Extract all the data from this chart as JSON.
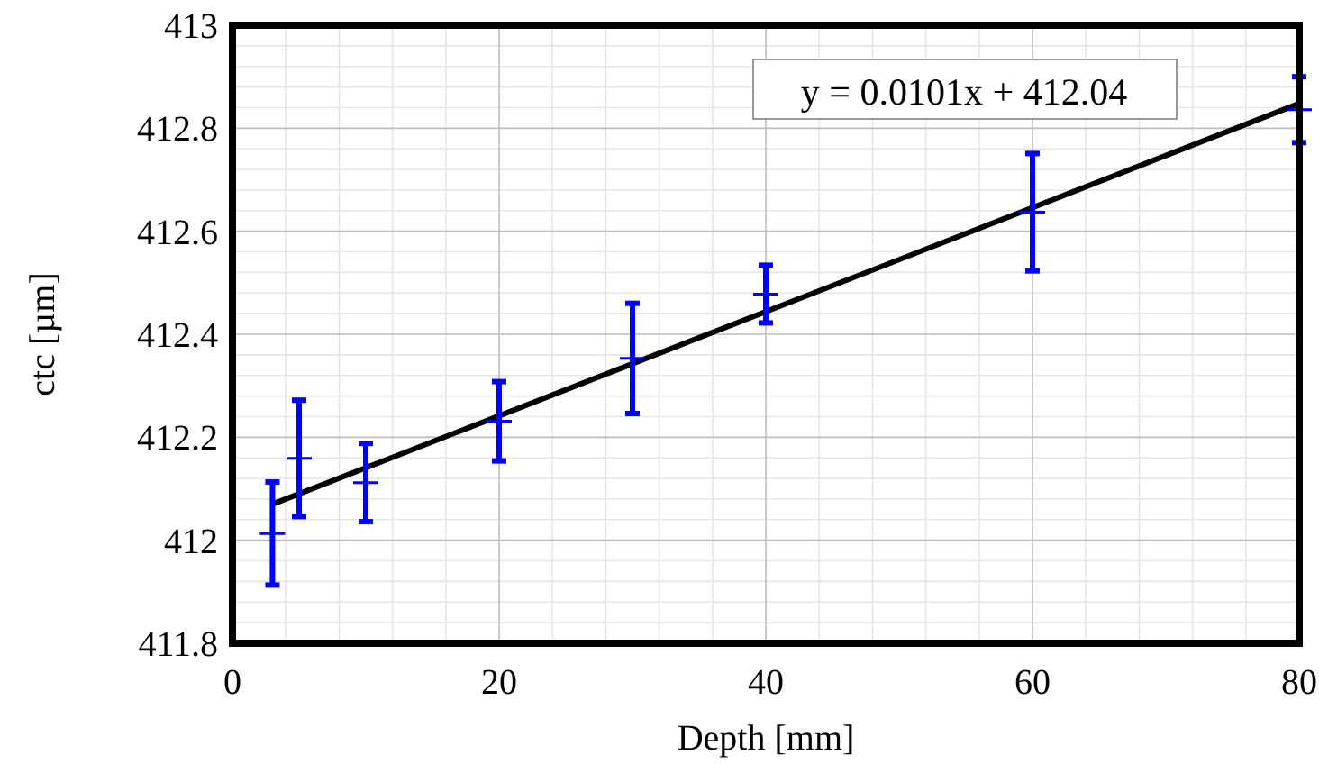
{
  "chart_data": {
    "type": "scatter",
    "xlabel": "Depth [mm]",
    "ylabel": "ctc [µm]",
    "xlim": [
      0,
      80
    ],
    "ylim": [
      411.8,
      413
    ],
    "xticks": [
      0,
      20,
      40,
      60,
      80
    ],
    "yticks": [
      411.8,
      412,
      412.2,
      412.4,
      412.6,
      412.8,
      413
    ],
    "grid": true,
    "series": [
      {
        "color": "#0000ff",
        "marker": "cross",
        "x": [
          3,
          5,
          10,
          20,
          30,
          40,
          60,
          80
        ],
        "values": [
          412.013,
          412.159,
          412.112,
          412.231,
          412.353,
          412.478,
          412.637,
          412.836
        ],
        "errors": [
          0.1,
          0.113,
          0.076,
          0.077,
          0.107,
          0.056,
          0.114,
          0.064
        ]
      },
      {
        "type": "line",
        "color": "#000000",
        "x": [
          3,
          80
        ],
        "values": [
          412.07,
          412.848
        ]
      }
    ],
    "annotations": [
      "y = 0.0101x + 412.04"
    ]
  }
}
